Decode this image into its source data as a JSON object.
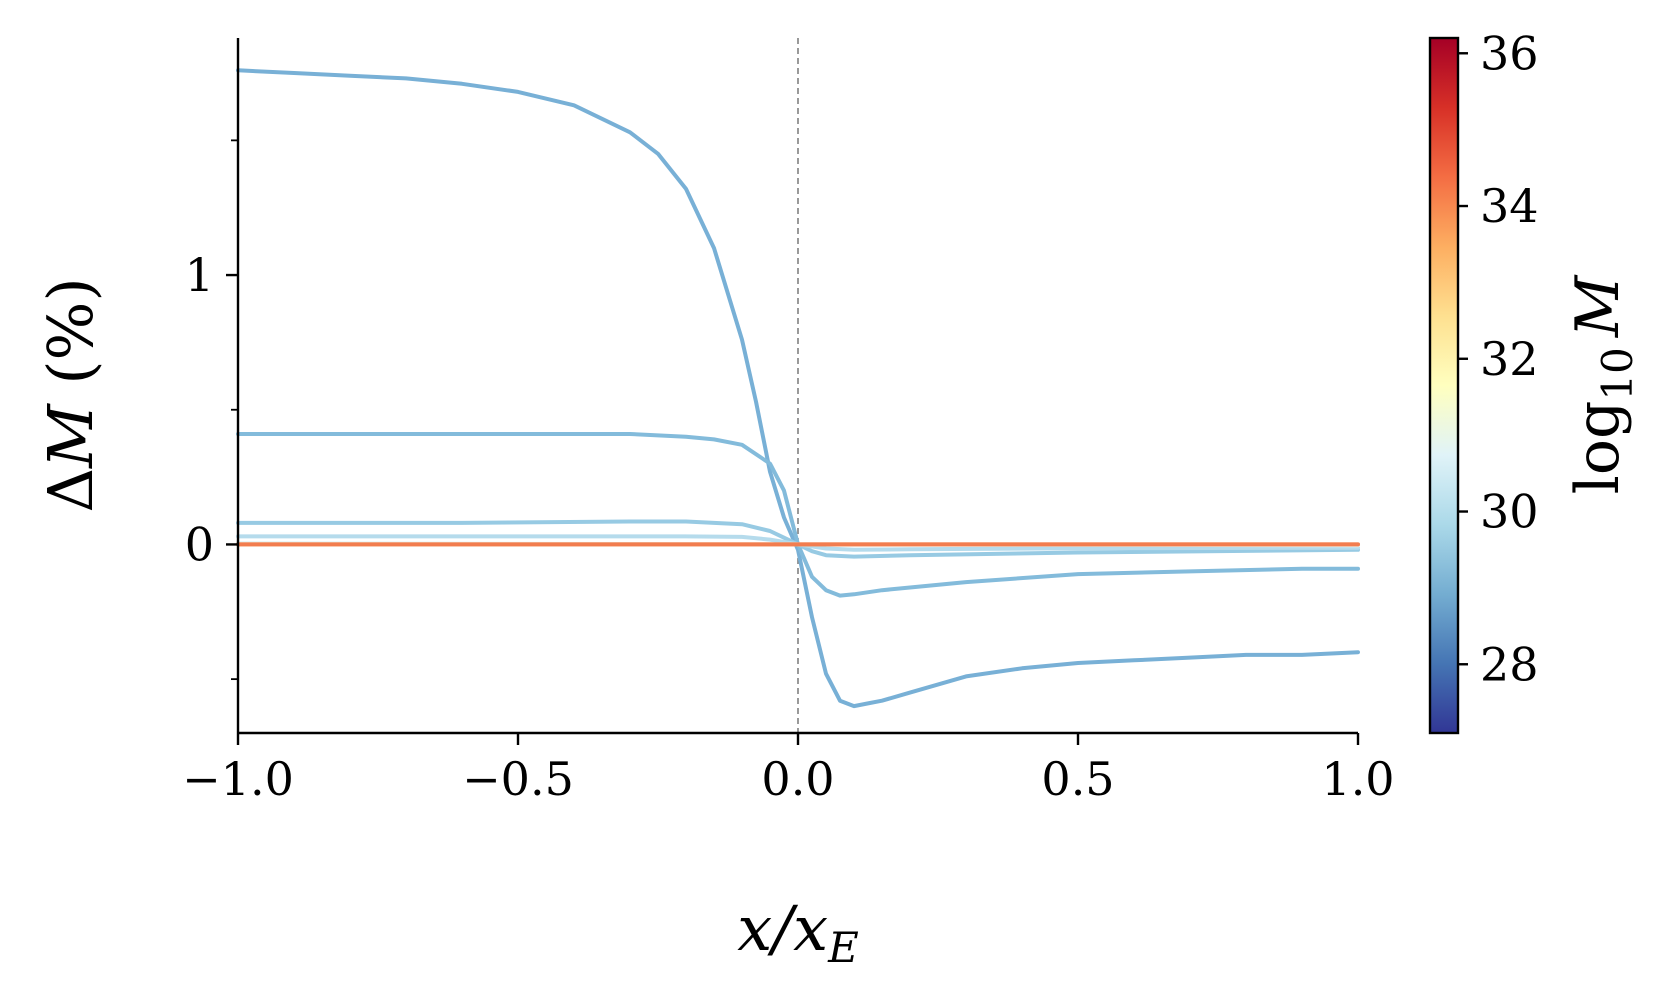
{
  "chart_data": {
    "type": "line",
    "xlabel": "x/x_E",
    "ylabel": "ΔM (%)",
    "xlim": [
      -1.0,
      1.0
    ],
    "ylim": [
      -0.7,
      1.88
    ],
    "x_ticks": [
      -1.0,
      -0.5,
      0.0,
      0.5,
      1.0
    ],
    "x_tick_labels": [
      "−1.0",
      "−0.5",
      "0.0",
      "0.5",
      "1.0"
    ],
    "y_major_ticks": [
      0,
      1
    ],
    "y_major_tick_labels": [
      "0",
      "1"
    ],
    "y_minor_ticks": [
      -0.5,
      0.5,
      1.5
    ],
    "reference_line": {
      "x": 0.0,
      "style": "dashed",
      "color": "#808080"
    },
    "grid": false,
    "legend": "none",
    "colorbar": {
      "label": "log10 M",
      "label_main": "log",
      "label_sub": "10",
      "label_var": "M",
      "range": [
        27.1,
        36.2
      ],
      "ticks": [
        28,
        30,
        32,
        34,
        36
      ],
      "tick_labels": [
        "28",
        "30",
        "32",
        "34",
        "36"
      ],
      "colormap": [
        "#313695",
        "#4575b4",
        "#74add1",
        "#abd9e9",
        "#e0f3f8",
        "#ffffbf",
        "#fee090",
        "#fdae61",
        "#f46d43",
        "#d73027",
        "#a50026"
      ]
    },
    "series": [
      {
        "color": "#78b0d6",
        "x": [
          -1.0,
          -0.9,
          -0.8,
          -0.7,
          -0.6,
          -0.5,
          -0.4,
          -0.3,
          -0.25,
          -0.2,
          -0.15,
          -0.1,
          -0.075,
          -0.05,
          -0.025,
          0.0,
          0.025,
          0.05,
          0.075,
          0.1,
          0.125,
          0.15,
          0.2,
          0.3,
          0.4,
          0.5,
          0.6,
          0.7,
          0.8,
          0.9,
          1.0
        ],
        "y": [
          1.76,
          1.75,
          1.74,
          1.73,
          1.71,
          1.68,
          1.63,
          1.53,
          1.45,
          1.32,
          1.1,
          0.76,
          0.53,
          0.27,
          0.1,
          -0.02,
          -0.27,
          -0.48,
          -0.58,
          -0.6,
          -0.59,
          -0.58,
          -0.55,
          -0.49,
          -0.46,
          -0.44,
          -0.43,
          -0.42,
          -0.41,
          -0.41,
          -0.4
        ]
      },
      {
        "color": "#83bbdb",
        "x": [
          -1.0,
          -0.8,
          -0.6,
          -0.4,
          -0.3,
          -0.2,
          -0.15,
          -0.1,
          -0.05,
          -0.025,
          0.0,
          0.025,
          0.05,
          0.075,
          0.1,
          0.15,
          0.2,
          0.3,
          0.5,
          0.7,
          0.9,
          1.0
        ],
        "y": [
          0.41,
          0.41,
          0.41,
          0.41,
          0.41,
          0.4,
          0.39,
          0.37,
          0.3,
          0.2,
          0.0,
          -0.12,
          -0.17,
          -0.19,
          -0.185,
          -0.17,
          -0.16,
          -0.14,
          -0.11,
          -0.1,
          -0.09,
          -0.09
        ]
      },
      {
        "color": "#97cae3",
        "x": [
          -1.0,
          -0.6,
          -0.3,
          -0.2,
          -0.1,
          -0.05,
          -0.025,
          0.0,
          0.025,
          0.05,
          0.1,
          0.2,
          0.5,
          1.0
        ],
        "y": [
          0.08,
          0.08,
          0.085,
          0.085,
          0.075,
          0.05,
          0.025,
          0.0,
          -0.025,
          -0.04,
          -0.045,
          -0.04,
          -0.03,
          -0.02
        ]
      },
      {
        "color": "#b5dbec",
        "x": [
          -1.0,
          -0.5,
          -0.2,
          -0.1,
          -0.05,
          0.0,
          0.05,
          0.1,
          0.2,
          0.5,
          1.0
        ],
        "y": [
          0.03,
          0.03,
          0.03,
          0.028,
          0.018,
          0.0,
          -0.015,
          -0.02,
          -0.018,
          -0.014,
          -0.012
        ]
      },
      {
        "color": "#e8f4f5",
        "x": [
          -1.0,
          0.0,
          1.0
        ],
        "y": [
          0.005,
          0.0,
          -0.003
        ]
      },
      {
        "color": "#fdb96b",
        "x": [
          -1.0,
          1.0
        ],
        "y": [
          0.0,
          0.0
        ]
      },
      {
        "color": "#f27d4f",
        "x": [
          -1.0,
          1.0
        ],
        "y": [
          0.0,
          0.0
        ]
      }
    ]
  }
}
